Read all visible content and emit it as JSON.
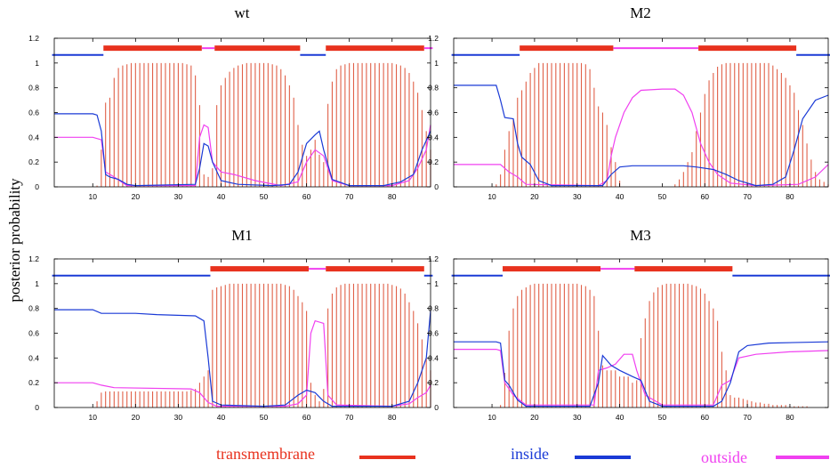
{
  "figure": {
    "ylabel": "posterior probability",
    "colors": {
      "tm": "#e8321e",
      "tm_bar": "#e06048",
      "inside": "#1a3ad6",
      "outside": "#f040f0"
    },
    "legend": [
      {
        "label": "transmembrane",
        "color": "#e8321e"
      },
      {
        "label": "inside",
        "color": "#1a3ad6"
      },
      {
        "label": "outside",
        "color": "#f040f0"
      }
    ]
  },
  "chart_data": [
    {
      "type": "bar",
      "title": "wt",
      "xlim": [
        1,
        89
      ],
      "ylim": [
        0,
        1.2
      ],
      "xticks": [
        10,
        20,
        30,
        40,
        50,
        60,
        70,
        80
      ],
      "yticks": [
        "0",
        "0.2",
        "0.4",
        "0.6",
        "0.8",
        "1",
        "1.2"
      ],
      "topology": [
        {
          "type": "inside",
          "start": 1,
          "end": 12
        },
        {
          "type": "tm",
          "start": 13,
          "end": 35
        },
        {
          "type": "outside",
          "start": 36,
          "end": 38
        },
        {
          "type": "tm",
          "start": 39,
          "end": 58
        },
        {
          "type": "inside",
          "start": 59,
          "end": 64
        },
        {
          "type": "tm",
          "start": 65,
          "end": 87
        },
        {
          "type": "outside",
          "start": 88,
          "end": 89
        }
      ],
      "tm_prob": [
        0,
        0,
        0,
        0,
        0,
        0,
        0,
        0,
        0,
        0,
        0.01,
        0.3,
        0.68,
        0.72,
        0.88,
        0.96,
        0.98,
        0.99,
        1,
        1,
        1,
        1,
        1,
        1,
        1,
        1,
        1,
        1,
        1,
        1,
        1,
        0.99,
        0.98,
        0.9,
        0.66,
        0.1,
        0.08,
        0.15,
        0.66,
        0.82,
        0.88,
        0.93,
        0.96,
        0.98,
        0.99,
        1,
        1,
        1,
        1,
        1,
        1,
        0.99,
        0.98,
        0.95,
        0.9,
        0.82,
        0.72,
        0.5,
        0.34,
        0.25,
        0.3,
        0.38,
        0.26,
        0.2,
        0.67,
        0.85,
        0.95,
        0.98,
        0.99,
        1,
        1,
        1,
        1,
        1,
        1,
        1,
        1,
        1,
        1,
        1,
        0.99,
        0.98,
        0.96,
        0.92,
        0.85,
        0.76,
        0.62,
        0.45,
        0.3
      ],
      "inside": [
        [
          1,
          0.59
        ],
        [
          10,
          0.59
        ],
        [
          11,
          0.58
        ],
        [
          12,
          0.45
        ],
        [
          13,
          0.1
        ],
        [
          14,
          0.08
        ],
        [
          16,
          0.06
        ],
        [
          18,
          0.02
        ],
        [
          20,
          0.01
        ],
        [
          34,
          0.02
        ],
        [
          35,
          0.15
        ],
        [
          36,
          0.35
        ],
        [
          37,
          0.33
        ],
        [
          38,
          0.2
        ],
        [
          40,
          0.05
        ],
        [
          44,
          0.02
        ],
        [
          52,
          0.01
        ],
        [
          56,
          0.02
        ],
        [
          58,
          0.12
        ],
        [
          60,
          0.35
        ],
        [
          62,
          0.42
        ],
        [
          63,
          0.45
        ],
        [
          64,
          0.3
        ],
        [
          66,
          0.06
        ],
        [
          70,
          0.01
        ],
        [
          78,
          0.01
        ],
        [
          82,
          0.04
        ],
        [
          85,
          0.1
        ],
        [
          87,
          0.3
        ],
        [
          89,
          0.45
        ]
      ],
      "outside": [
        [
          1,
          0.4
        ],
        [
          10,
          0.4
        ],
        [
          12,
          0.38
        ],
        [
          13,
          0.12
        ],
        [
          15,
          0.08
        ],
        [
          18,
          0.01
        ],
        [
          34,
          0.01
        ],
        [
          35,
          0.4
        ],
        [
          36,
          0.5
        ],
        [
          37,
          0.48
        ],
        [
          38,
          0.2
        ],
        [
          40,
          0.12
        ],
        [
          43,
          0.1
        ],
        [
          48,
          0.05
        ],
        [
          54,
          0.01
        ],
        [
          58,
          0.04
        ],
        [
          60,
          0.2
        ],
        [
          62,
          0.3
        ],
        [
          64,
          0.25
        ],
        [
          66,
          0.05
        ],
        [
          70,
          0.01
        ],
        [
          80,
          0.01
        ],
        [
          84,
          0.05
        ],
        [
          86,
          0.15
        ],
        [
          88,
          0.3
        ],
        [
          89,
          0.5
        ]
      ]
    },
    {
      "type": "bar",
      "title": "M2",
      "xlim": [
        1,
        89
      ],
      "ylim": [
        0,
        1.2
      ],
      "xticks": [
        10,
        20,
        30,
        40,
        50,
        60,
        70,
        80
      ],
      "yticks": [
        "0",
        "0.2",
        "0.4",
        "0.6",
        "0.8",
        "1",
        "1.2"
      ],
      "topology": [
        {
          "type": "inside",
          "start": 1,
          "end": 16
        },
        {
          "type": "tm",
          "start": 17,
          "end": 38
        },
        {
          "type": "outside",
          "start": 39,
          "end": 58
        },
        {
          "type": "tm",
          "start": 59,
          "end": 81
        },
        {
          "type": "inside",
          "start": 82,
          "end": 89
        }
      ],
      "tm_prob": [
        0,
        0,
        0,
        0,
        0,
        0,
        0,
        0,
        0,
        0,
        0.02,
        0.1,
        0.3,
        0.45,
        0.55,
        0.72,
        0.78,
        0.85,
        0.92,
        0.96,
        1,
        1,
        1,
        1,
        1,
        1,
        1,
        1,
        1,
        1,
        1,
        0.99,
        0.95,
        0.8,
        0.65,
        0.6,
        0.5,
        0.32,
        0.2,
        0.05,
        0,
        0,
        0,
        0,
        0,
        0,
        0,
        0,
        0,
        0,
        0,
        0,
        0.02,
        0.06,
        0.12,
        0.2,
        0.28,
        0.45,
        0.6,
        0.75,
        0.86,
        0.92,
        0.97,
        0.99,
        1,
        1,
        1,
        1,
        1,
        1,
        1,
        1,
        1,
        1,
        1,
        0.98,
        0.95,
        0.92,
        0.88,
        0.82,
        0.76,
        0.62,
        0.5,
        0.35,
        0.22,
        0.12,
        0.06,
        0.04,
        0.02
      ],
      "inside": [
        [
          1,
          0.82
        ],
        [
          11,
          0.82
        ],
        [
          12,
          0.7
        ],
        [
          13,
          0.56
        ],
        [
          15,
          0.55
        ],
        [
          16,
          0.35
        ],
        [
          17,
          0.24
        ],
        [
          19,
          0.18
        ],
        [
          21,
          0.05
        ],
        [
          24,
          0.01
        ],
        [
          36,
          0.01
        ],
        [
          38,
          0.1
        ],
        [
          40,
          0.16
        ],
        [
          43,
          0.17
        ],
        [
          55,
          0.17
        ],
        [
          58,
          0.16
        ],
        [
          62,
          0.14
        ],
        [
          65,
          0.1
        ],
        [
          68,
          0.05
        ],
        [
          72,
          0.01
        ],
        [
          76,
          0.02
        ],
        [
          79,
          0.08
        ],
        [
          81,
          0.3
        ],
        [
          83,
          0.55
        ],
        [
          86,
          0.7
        ],
        [
          89,
          0.74
        ]
      ],
      "outside": [
        [
          1,
          0.18
        ],
        [
          12,
          0.18
        ],
        [
          14,
          0.12
        ],
        [
          16,
          0.08
        ],
        [
          18,
          0.02
        ],
        [
          35,
          0.01
        ],
        [
          37,
          0.05
        ],
        [
          38,
          0.25
        ],
        [
          39,
          0.4
        ],
        [
          41,
          0.6
        ],
        [
          43,
          0.72
        ],
        [
          45,
          0.78
        ],
        [
          50,
          0.79
        ],
        [
          53,
          0.79
        ],
        [
          55,
          0.74
        ],
        [
          57,
          0.6
        ],
        [
          59,
          0.35
        ],
        [
          61,
          0.2
        ],
        [
          63,
          0.1
        ],
        [
          66,
          0.03
        ],
        [
          72,
          0.01
        ],
        [
          82,
          0.02
        ],
        [
          86,
          0.08
        ],
        [
          89,
          0.18
        ]
      ]
    },
    {
      "type": "bar",
      "title": "M1",
      "xlim": [
        1,
        89
      ],
      "ylim": [
        0,
        1.2
      ],
      "xticks": [
        10,
        20,
        30,
        40,
        50,
        60,
        70,
        80
      ],
      "yticks": [
        "0",
        "0.2",
        "0.4",
        "0.6",
        "0.8",
        "1",
        "1.2"
      ],
      "topology": [
        {
          "type": "inside",
          "start": 1,
          "end": 37
        },
        {
          "type": "tm",
          "start": 38,
          "end": 60
        },
        {
          "type": "outside",
          "start": 61,
          "end": 64
        },
        {
          "type": "tm",
          "start": 65,
          "end": 87
        },
        {
          "type": "inside",
          "start": 88,
          "end": 89
        }
      ],
      "tm_prob": [
        0,
        0,
        0,
        0,
        0,
        0,
        0,
        0,
        0,
        0,
        0.05,
        0.12,
        0.13,
        0.13,
        0.13,
        0.13,
        0.13,
        0.13,
        0.13,
        0.13,
        0.13,
        0.13,
        0.13,
        0.13,
        0.13,
        0.13,
        0.13,
        0.13,
        0.13,
        0.13,
        0.13,
        0.13,
        0.14,
        0.15,
        0.2,
        0.25,
        0.3,
        0.95,
        0.97,
        0.98,
        0.99,
        1,
        1,
        1,
        1,
        1,
        1,
        1,
        1,
        1,
        1,
        1,
        1,
        1,
        0.99,
        0.98,
        0.95,
        0.9,
        0.85,
        0.78,
        0.2,
        0.1,
        0.05,
        0.15,
        0.8,
        0.92,
        0.97,
        0.99,
        1,
        1,
        1,
        1,
        1,
        1,
        1,
        1,
        1,
        1,
        1,
        0.99,
        0.98,
        0.96,
        0.92,
        0.85,
        0.78,
        0.68,
        0.55,
        0.4,
        0.3
      ],
      "inside": [
        [
          1,
          0.79
        ],
        [
          10,
          0.79
        ],
        [
          12,
          0.76
        ],
        [
          20,
          0.76
        ],
        [
          25,
          0.75
        ],
        [
          34,
          0.74
        ],
        [
          35,
          0.72
        ],
        [
          36,
          0.7
        ],
        [
          37,
          0.4
        ],
        [
          38,
          0.05
        ],
        [
          40,
          0.02
        ],
        [
          50,
          0.01
        ],
        [
          55,
          0.02
        ],
        [
          58,
          0.1
        ],
        [
          60,
          0.14
        ],
        [
          62,
          0.12
        ],
        [
          64,
          0.05
        ],
        [
          66,
          0.01
        ],
        [
          80,
          0.01
        ],
        [
          84,
          0.05
        ],
        [
          86,
          0.2
        ],
        [
          88,
          0.4
        ],
        [
          89,
          0.78
        ]
      ],
      "outside": [
        [
          1,
          0.2
        ],
        [
          10,
          0.2
        ],
        [
          12,
          0.18
        ],
        [
          15,
          0.16
        ],
        [
          33,
          0.15
        ],
        [
          35,
          0.12
        ],
        [
          37,
          0.04
        ],
        [
          39,
          0.01
        ],
        [
          55,
          0.01
        ],
        [
          58,
          0.03
        ],
        [
          60,
          0.1
        ],
        [
          61,
          0.6
        ],
        [
          62,
          0.7
        ],
        [
          64,
          0.68
        ],
        [
          65,
          0.1
        ],
        [
          67,
          0.02
        ],
        [
          80,
          0.01
        ],
        [
          84,
          0.03
        ],
        [
          86,
          0.08
        ],
        [
          88,
          0.12
        ],
        [
          89,
          0.18
        ]
      ]
    },
    {
      "type": "bar",
      "title": "M3",
      "xlim": [
        1,
        89
      ],
      "ylim": [
        0,
        1.2
      ],
      "xticks": [
        10,
        20,
        30,
        40,
        50,
        60,
        70,
        80
      ],
      "yticks": [
        "0",
        "0.2",
        "0.4",
        "0.6",
        "0.8",
        "1",
        "1.2"
      ],
      "topology": [
        {
          "type": "inside",
          "start": 1,
          "end": 12
        },
        {
          "type": "tm",
          "start": 13,
          "end": 35
        },
        {
          "type": "outside",
          "start": 36,
          "end": 43
        },
        {
          "type": "tm",
          "start": 44,
          "end": 66
        },
        {
          "type": "inside",
          "start": 67,
          "end": 89
        }
      ],
      "tm_prob": [
        0,
        0,
        0,
        0,
        0,
        0,
        0,
        0,
        0,
        0,
        0,
        0.02,
        0.28,
        0.62,
        0.8,
        0.9,
        0.95,
        0.97,
        0.99,
        1,
        1,
        1,
        1,
        1,
        1,
        1,
        1,
        1,
        1,
        1,
        0.99,
        0.98,
        0.95,
        0.9,
        0.62,
        0.34,
        0.3,
        0.3,
        0.3,
        0.25,
        0.25,
        0.25,
        0.2,
        0.22,
        0.56,
        0.72,
        0.86,
        0.93,
        0.97,
        0.99,
        1,
        1,
        1,
        1,
        1,
        1,
        0.99,
        0.98,
        0.96,
        0.92,
        0.86,
        0.8,
        0.7,
        0.45,
        0.3,
        0.1,
        0.08,
        0.08,
        0.07,
        0.06,
        0.05,
        0.04,
        0.04,
        0.03,
        0.03,
        0.02,
        0.02,
        0.02,
        0.02,
        0.01,
        0.01,
        0.01,
        0.01,
        0.01,
        0,
        0,
        0,
        0,
        0
      ],
      "inside": [
        [
          1,
          0.53
        ],
        [
          11,
          0.53
        ],
        [
          12,
          0.52
        ],
        [
          13,
          0.22
        ],
        [
          14,
          0.18
        ],
        [
          16,
          0.06
        ],
        [
          18,
          0.01
        ],
        [
          33,
          0.01
        ],
        [
          35,
          0.2
        ],
        [
          36,
          0.42
        ],
        [
          37,
          0.38
        ],
        [
          38,
          0.34
        ],
        [
          40,
          0.3
        ],
        [
          43,
          0.25
        ],
        [
          45,
          0.22
        ],
        [
          47,
          0.05
        ],
        [
          50,
          0.01
        ],
        [
          62,
          0.01
        ],
        [
          64,
          0.05
        ],
        [
          66,
          0.2
        ],
        [
          68,
          0.45
        ],
        [
          70,
          0.5
        ],
        [
          75,
          0.52
        ],
        [
          89,
          0.53
        ]
      ],
      "outside": [
        [
          1,
          0.47
        ],
        [
          11,
          0.47
        ],
        [
          12,
          0.46
        ],
        [
          13,
          0.2
        ],
        [
          15,
          0.1
        ],
        [
          18,
          0.02
        ],
        [
          34,
          0.02
        ],
        [
          35,
          0.3
        ],
        [
          37,
          0.32
        ],
        [
          39,
          0.35
        ],
        [
          41,
          0.43
        ],
        [
          43,
          0.43
        ],
        [
          44,
          0.3
        ],
        [
          46,
          0.1
        ],
        [
          50,
          0.02
        ],
        [
          62,
          0.02
        ],
        [
          64,
          0.18
        ],
        [
          66,
          0.22
        ],
        [
          68,
          0.4
        ],
        [
          72,
          0.43
        ],
        [
          80,
          0.45
        ],
        [
          89,
          0.46
        ]
      ]
    }
  ]
}
